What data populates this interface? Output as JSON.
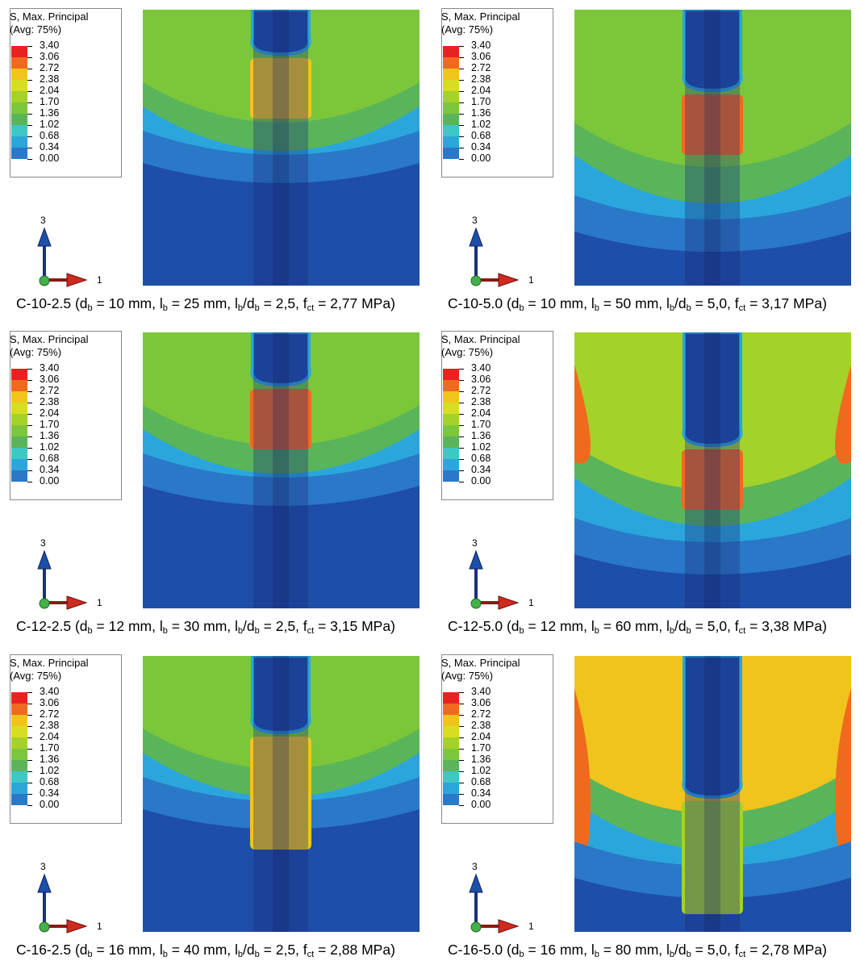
{
  "legend": {
    "title_line1": "S, Max. Principal",
    "title_line2": "(Avg: 75%)",
    "levels": [
      "3.40",
      "3.06",
      "2.72",
      "2.38",
      "2.04",
      "1.70",
      "1.36",
      "1.02",
      "0.68",
      "0.34",
      "0.00"
    ],
    "colors": [
      "#e8231f",
      "#f06a1e",
      "#f0c41c",
      "#d6dd22",
      "#a5d12b",
      "#7cc63a",
      "#5ab55a",
      "#3ec7c4",
      "#2aa6dc",
      "#2a78c8",
      "#1e4ea8"
    ]
  },
  "triad": {
    "vertical_label": "3",
    "horizontal_label": "1"
  },
  "panels": [
    {
      "id": "C-10-2.5",
      "db": "10",
      "lb": "25",
      "ratio": "2,5",
      "fct": "2,77"
    },
    {
      "id": "C-10-5.0",
      "db": "10",
      "lb": "50",
      "ratio": "5,0",
      "fct": "3,17"
    },
    {
      "id": "C-12-2.5",
      "db": "12",
      "lb": "30",
      "ratio": "2,5",
      "fct": "3,15"
    },
    {
      "id": "C-12-5.0",
      "db": "12",
      "lb": "60",
      "ratio": "5,0",
      "fct": "3,38"
    },
    {
      "id": "C-16-2.5",
      "db": "16",
      "lb": "40",
      "ratio": "2,5",
      "fct": "2,88"
    },
    {
      "id": "C-16-5.0",
      "db": "16",
      "lb": "80",
      "ratio": "5,0",
      "fct": "2,78"
    }
  ],
  "caption_parts": {
    "open": " (d",
    "sub_b": "b",
    "eq_mm": " = ",
    "mm": " mm, l",
    "lb_over": "/d",
    "fct_pre": ", f",
    "sub_ct": "ct",
    "mpa": " MPa)"
  }
}
